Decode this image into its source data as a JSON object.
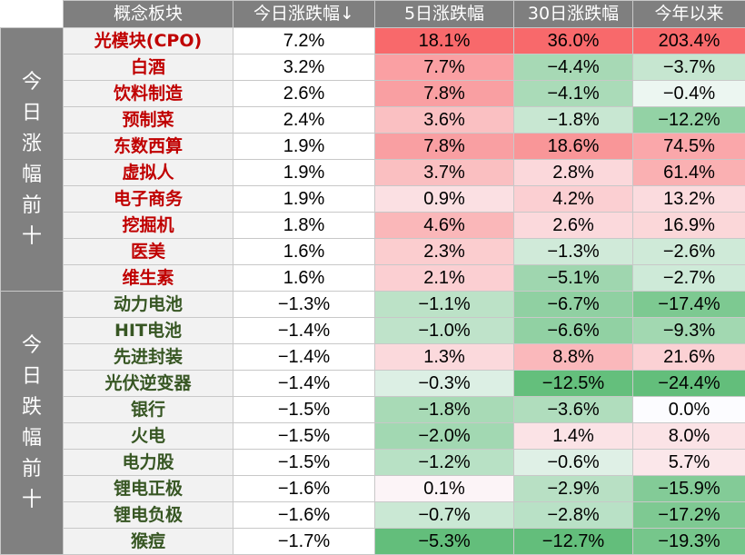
{
  "chart_data": {
    "type": "table",
    "columns": [
      "概念板块",
      "今日涨跌幅↓",
      "5日涨跌幅",
      "30日涨跌幅",
      "今年以来"
    ],
    "groups": [
      {
        "label": "今日涨幅前十",
        "direction": "up",
        "rows": [
          {
            "name": "光模块(CPO)",
            "values": [
              "7.2%",
              "18.1%",
              "36.0%",
              "203.4%"
            ]
          },
          {
            "name": "白酒",
            "values": [
              "3.2%",
              "7.7%",
              "−4.4%",
              "−3.7%"
            ]
          },
          {
            "name": "饮料制造",
            "values": [
              "2.6%",
              "7.8%",
              "−4.1%",
              "−0.4%"
            ]
          },
          {
            "name": "预制菜",
            "values": [
              "2.4%",
              "3.6%",
              "−1.8%",
              "−12.2%"
            ]
          },
          {
            "name": "东数西算",
            "values": [
              "1.9%",
              "7.8%",
              "18.6%",
              "74.5%"
            ]
          },
          {
            "name": "虚拟人",
            "values": [
              "1.9%",
              "3.7%",
              "2.8%",
              "61.4%"
            ]
          },
          {
            "name": "电子商务",
            "values": [
              "1.9%",
              "0.9%",
              "4.2%",
              "13.2%"
            ]
          },
          {
            "name": "挖掘机",
            "values": [
              "1.8%",
              "4.6%",
              "2.6%",
              "16.9%"
            ]
          },
          {
            "name": "医美",
            "values": [
              "1.6%",
              "2.3%",
              "−1.3%",
              "−2.6%"
            ]
          },
          {
            "name": "维生素",
            "values": [
              "1.6%",
              "2.1%",
              "−5.1%",
              "−2.7%"
            ]
          }
        ]
      },
      {
        "label": "今日跌幅前十",
        "direction": "down",
        "rows": [
          {
            "name": "动力电池",
            "values": [
              "−1.3%",
              "−1.1%",
              "−6.7%",
              "−17.4%"
            ]
          },
          {
            "name": "HIT电池",
            "values": [
              "−1.4%",
              "−1.0%",
              "−6.6%",
              "−9.3%"
            ]
          },
          {
            "name": "先进封装",
            "values": [
              "−1.4%",
              "1.3%",
              "8.8%",
              "21.6%"
            ]
          },
          {
            "name": "光伏逆变器",
            "values": [
              "−1.4%",
              "−0.3%",
              "−12.5%",
              "−24.4%"
            ]
          },
          {
            "name": "银行",
            "values": [
              "−1.5%",
              "−1.8%",
              "−3.6%",
              "0.0%"
            ]
          },
          {
            "name": "火电",
            "values": [
              "−1.5%",
              "−2.0%",
              "1.4%",
              "8.0%"
            ]
          },
          {
            "name": "电力股",
            "values": [
              "−1.5%",
              "−1.2%",
              "−0.6%",
              "5.7%"
            ]
          },
          {
            "name": "锂电正极",
            "values": [
              "−1.6%",
              "0.1%",
              "−2.9%",
              "−15.9%"
            ]
          },
          {
            "name": "锂电负极",
            "values": [
              "−1.6%",
              "−0.7%",
              "−2.8%",
              "−17.2%"
            ]
          },
          {
            "name": "猴痘",
            "values": [
              "−1.7%",
              "−5.3%",
              "−12.7%",
              "−19.3%"
            ]
          }
        ]
      }
    ],
    "colors": {
      "positive": "#f8696b",
      "negative": "#63be7b",
      "neutral": "#fcfcff",
      "header_bg": "#7f7f7f",
      "name_up": "#c00000",
      "name_down": "#375623"
    }
  }
}
